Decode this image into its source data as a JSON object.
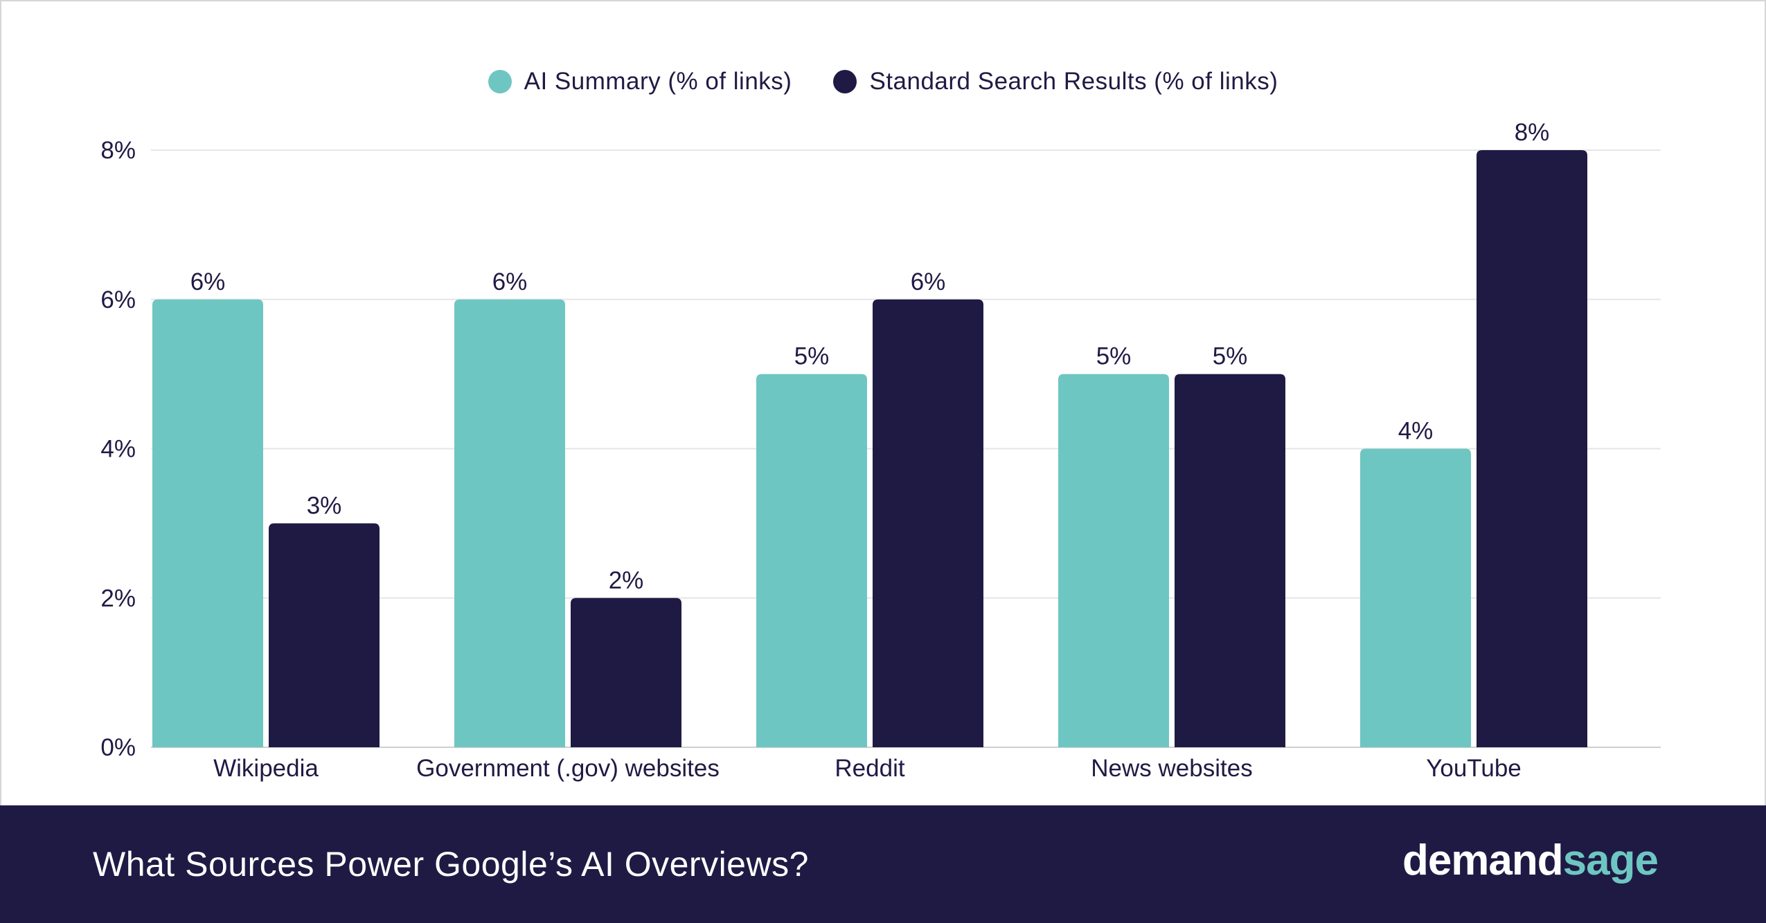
{
  "colors": {
    "ai_summary": "#6ec6c2",
    "standard_search": "#1f1a44",
    "footer_bg": "#1f1a44",
    "grid": "#e6e6e6",
    "text": "#1f1a44"
  },
  "legend": {
    "items": [
      {
        "label": "AI Summary (% of links)",
        "color": "#6ec6c2"
      },
      {
        "label": "Standard Search Results (% of links)",
        "color": "#1f1a44"
      }
    ]
  },
  "footer": {
    "title": "What Sources Power Google’s AI Overviews?",
    "brand_part1": "demand",
    "brand_part2": "sage"
  },
  "chart_data": {
    "type": "bar",
    "categories": [
      "Wikipedia",
      "Government (.gov) websites",
      "Reddit",
      "News websites",
      "YouTube"
    ],
    "series": [
      {
        "name": "AI Summary (% of links)",
        "values": [
          6,
          6,
          5,
          5,
          4
        ],
        "color": "#6ec6c2"
      },
      {
        "name": "Standard Search Results (% of links)",
        "values": [
          3,
          2,
          6,
          5,
          8
        ],
        "color": "#1f1a44"
      }
    ],
    "value_labels": [
      [
        "6%",
        "6%",
        "5%",
        "5%",
        "4%"
      ],
      [
        "3%",
        "2%",
        "6%",
        "5%",
        "8%"
      ]
    ],
    "yticks": [
      0,
      2,
      4,
      6,
      8
    ],
    "ytick_labels": [
      "0%",
      "2%",
      "4%",
      "6%",
      "8%"
    ],
    "ylim": [
      0,
      8
    ],
    "grid": true,
    "legend_position": "top-center",
    "title": "What Sources Power Google’s AI Overviews?",
    "xlabel": "",
    "ylabel": ""
  }
}
